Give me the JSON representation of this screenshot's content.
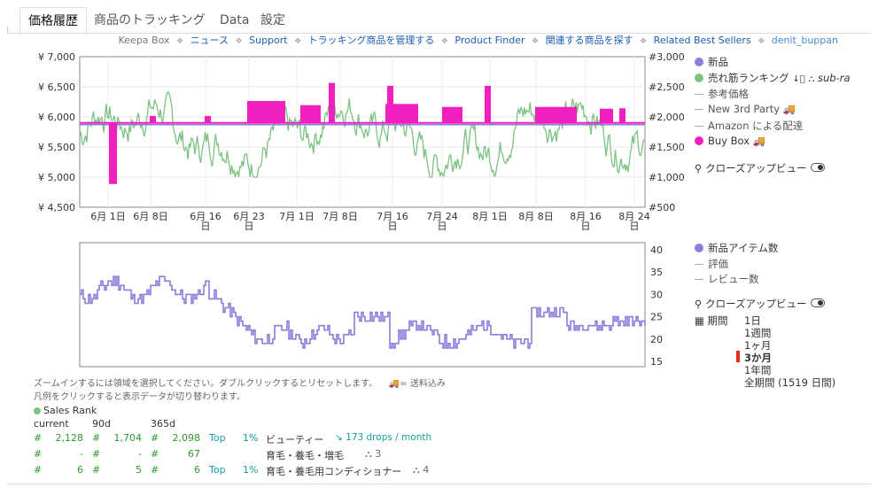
{
  "tabs": [
    "価格履歴",
    "商品のトラッキング",
    "Data",
    "設定"
  ],
  "links": {
    "source": "Keepa Box",
    "items": [
      "ニュース",
      "Support",
      "トラッキング商品を管理する",
      "Product Finder",
      "関連する商品を探す",
      "Related Best Sellers"
    ],
    "user": "denit_buppan"
  },
  "colors": {
    "new": "#8a7ddb",
    "salesrank": "#7dc283",
    "buybox": "#f21fc0",
    "reference": "#aaaaaa"
  },
  "chart_data": [
    {
      "type": "line",
      "yleft_ticks": [
        "¥ 7,000",
        "¥ 6,500",
        "¥ 6,000",
        "¥ 5,500",
        "¥ 5,000",
        "¥ 4,500"
      ],
      "yright_ticks": [
        "#3,000",
        "#2,500",
        "#2,000",
        "#1,500",
        "#1,000",
        "#500"
      ],
      "yleft_range": [
        4500,
        7000
      ],
      "yright_range": [
        500,
        3000
      ],
      "x_ticks": [
        "6月 1日",
        "6月 8日",
        "6月 16日",
        "6月 23日",
        "7月 1日",
        "7月 8日",
        "7月 16日",
        "7月 24日",
        "8月 1日",
        "8月 8日",
        "8月 16日",
        "8月 24日"
      ],
      "series": [
        {
          "name": "新品",
          "values": [
            1870,
            1870
          ]
        },
        {
          "name": "売れ筋ランキング",
          "axis": "right",
          "approx_range": [
            1000,
            2800
          ]
        },
        {
          "name": "Buy Box",
          "axis": "left",
          "baseline": 5900,
          "spike_max": 6300,
          "drop_min": 4900
        }
      ]
    },
    {
      "type": "line",
      "y_ticks": [
        "40",
        "35",
        "30",
        "25",
        "20",
        "15"
      ],
      "y_range": [
        15,
        40
      ],
      "series": [
        {
          "name": "新品アイテム数",
          "start": 33,
          "end": 23,
          "min": 16,
          "max": 36
        }
      ]
    }
  ],
  "legend1": {
    "new": "新品",
    "salesrank": "売れ筋ランキング",
    "subrank": "sub-ra",
    "ref": "参考価格",
    "new3rd": "New 3rd Party",
    "amazon": "Amazon による配達",
    "buybox": "Buy Box",
    "closeup": "クローズアップビュー"
  },
  "legend2": {
    "newcount": "新品アイテム数",
    "rating": "評価",
    "reviews": "レビュー数",
    "closeup": "クローズアップビュー",
    "period_label": "期間",
    "periods": [
      "1日",
      "1週間",
      "1ヶ月",
      "3か月",
      "1年間",
      "全期間 (1519 日間)"
    ],
    "active_period": "3か月"
  },
  "hints": {
    "zoom": "ズームインするには領域を選択してください。ダブルクリックするとリセットします。",
    "shipping": "= 送料込み",
    "legend_toggle": "凡例をクリックすると表示データが切り替わります。"
  },
  "sales": {
    "title": "Sales Rank",
    "headers": [
      "current",
      "90d",
      "365d"
    ],
    "rows": [
      {
        "hash": "#",
        "current": "2,128",
        "d90": "1,704",
        "d365": "2,098",
        "top": "Top",
        "pct": "1%",
        "cat": "ビューティー",
        "drops": "173 drops / month",
        "badge": ""
      },
      {
        "hash": "#",
        "current": "-",
        "d90": "-",
        "d365": "67",
        "top": "",
        "pct": "",
        "cat": "育毛・養毛・増毛",
        "drops": "",
        "badge": "3"
      },
      {
        "hash": "#",
        "current": "6",
        "d90": "5",
        "d365": "6",
        "top": "Top",
        "pct": "1%",
        "cat": "育毛・養毛用コンディショナー",
        "drops": "",
        "badge": "4"
      }
    ]
  }
}
